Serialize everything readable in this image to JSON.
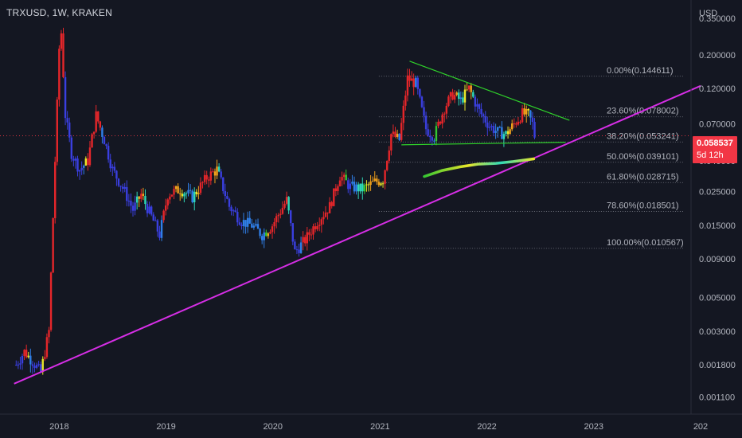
{
  "symbol": "TRXUSD, 1W, KRAKEN",
  "currency": "USD",
  "last_price": "0.058537",
  "countdown": "5d 12h",
  "colors": {
    "background": "#141722",
    "axis_text": "#b2b5be",
    "fib_text": "#b2b5be",
    "support_trendline": "#d62ee6",
    "triangle_lines": "#2fd22a",
    "price_badge": "#f23645"
  },
  "chart_data": {
    "type": "candlestick",
    "scale": "log",
    "ylim": [
      0.00085,
      0.45
    ],
    "xlim": [
      "2017-07-10",
      "2024-01-01"
    ],
    "y_ticks": [
      {
        "label": "0.350000",
        "value": 0.35
      },
      {
        "label": "0.200000",
        "value": 0.2
      },
      {
        "label": "0.120000",
        "value": 0.12
      },
      {
        "label": "0.070000",
        "value": 0.07
      },
      {
        "label": "0.040000",
        "value": 0.04
      },
      {
        "label": "0.025000",
        "value": 0.025
      },
      {
        "label": "0.015000",
        "value": 0.015
      },
      {
        "label": "0.009000",
        "value": 0.009
      },
      {
        "label": "0.005000",
        "value": 0.005
      },
      {
        "label": "0.003000",
        "value": 0.003
      },
      {
        "label": "0.001800",
        "value": 0.0018
      },
      {
        "label": "0.001100",
        "value": 0.0011
      }
    ],
    "x_ticks": [
      {
        "label": "2018",
        "date": "2018-01-01"
      },
      {
        "label": "2019",
        "date": "2019-01-01"
      },
      {
        "label": "2020",
        "date": "2020-01-01"
      },
      {
        "label": "2021",
        "date": "2021-01-01"
      },
      {
        "label": "2022",
        "date": "2022-01-01"
      },
      {
        "label": "2023",
        "date": "2023-01-01"
      },
      {
        "label": "202",
        "date": "2024-01-01"
      }
    ],
    "fib_levels": [
      {
        "label": "0.00%(0.144611)",
        "value": 0.144611
      },
      {
        "label": "23.60%(0.078002)",
        "value": 0.078002
      },
      {
        "label": "38.20%(0.053241)",
        "value": 0.053241
      },
      {
        "label": "50.00%(0.039101)",
        "value": 0.039101
      },
      {
        "label": "61.80%(0.028715)",
        "value": 0.028715
      },
      {
        "label": "78.60%(0.018501)",
        "value": 0.018501
      },
      {
        "label": "100.00%(0.010567)",
        "value": 0.010567
      }
    ],
    "fib_start_date": "2020-12-28",
    "current_price": 0.058537,
    "trendlines": [
      {
        "name": "support",
        "color": "#d62ee6",
        "from": [
          "2017-07-31",
          0.00135
        ],
        "to": [
          "2024-01-01",
          0.125
        ]
      },
      {
        "name": "triangle-top",
        "color": "#2fd22a",
        "from": [
          "2021-04-12",
          0.182
        ],
        "to": [
          "2022-10-10",
          0.074
        ]
      },
      {
        "name": "triangle-bottom",
        "color": "#2fd22a",
        "from": [
          "2021-03-15",
          0.051
        ],
        "to": [
          "2022-09-26",
          0.053
        ]
      }
    ],
    "moving_average": [
      [
        "2021-06-01",
        0.0315
      ],
      [
        "2021-08-01",
        0.0345
      ],
      [
        "2021-10-01",
        0.0365
      ],
      [
        "2021-12-01",
        0.038
      ],
      [
        "2022-02-01",
        0.0385
      ],
      [
        "2022-04-01",
        0.0395
      ],
      [
        "2022-06-10",
        0.0412
      ]
    ],
    "price_path": [
      [
        "2017-08-07",
        0.0018
      ],
      [
        "2017-09-04",
        0.0022
      ],
      [
        "2017-10-02",
        0.0019
      ],
      [
        "2017-10-30",
        0.0016
      ],
      [
        "2017-11-27",
        0.003
      ],
      [
        "2017-12-18",
        0.04
      ],
      [
        "2018-01-01",
        0.22
      ],
      [
        "2018-01-08",
        0.28
      ],
      [
        "2018-01-22",
        0.08
      ],
      [
        "2018-02-12",
        0.045
      ],
      [
        "2018-03-12",
        0.035
      ],
      [
        "2018-04-09",
        0.04
      ],
      [
        "2018-05-07",
        0.08
      ],
      [
        "2018-06-04",
        0.055
      ],
      [
        "2018-07-02",
        0.035
      ],
      [
        "2018-08-13",
        0.025
      ],
      [
        "2018-09-10",
        0.019
      ],
      [
        "2018-10-08",
        0.024
      ],
      [
        "2018-11-19",
        0.016
      ],
      [
        "2018-12-10",
        0.013
      ],
      [
        "2019-01-07",
        0.024
      ],
      [
        "2019-02-18",
        0.026
      ],
      [
        "2019-04-01",
        0.023
      ],
      [
        "2019-05-20",
        0.031
      ],
      [
        "2019-06-24",
        0.035
      ],
      [
        "2019-08-05",
        0.02
      ],
      [
        "2019-09-16",
        0.016
      ],
      [
        "2019-10-21",
        0.015
      ],
      [
        "2019-11-25",
        0.013
      ],
      [
        "2019-12-30",
        0.015
      ],
      [
        "2020-02-17",
        0.022
      ],
      [
        "2020-03-16",
        0.01
      ],
      [
        "2020-04-20",
        0.012
      ],
      [
        "2020-06-01",
        0.016
      ],
      [
        "2020-07-13",
        0.02
      ],
      [
        "2020-08-17",
        0.032
      ],
      [
        "2020-09-21",
        0.027
      ],
      [
        "2020-11-02",
        0.026
      ],
      [
        "2020-12-14",
        0.029
      ],
      [
        "2021-01-11",
        0.03
      ],
      [
        "2021-02-08",
        0.06
      ],
      [
        "2021-03-08",
        0.055
      ],
      [
        "2021-04-05",
        0.14
      ],
      [
        "2021-05-03",
        0.13
      ],
      [
        "2021-06-07",
        0.065
      ],
      [
        "2021-07-05",
        0.058
      ],
      [
        "2021-08-09",
        0.09
      ],
      [
        "2021-09-06",
        0.11
      ],
      [
        "2021-10-04",
        0.1
      ],
      [
        "2021-11-01",
        0.12
      ],
      [
        "2021-12-06",
        0.085
      ],
      [
        "2022-01-10",
        0.068
      ],
      [
        "2022-02-07",
        0.062
      ],
      [
        "2022-03-07",
        0.06
      ],
      [
        "2022-04-04",
        0.07
      ],
      [
        "2022-05-02",
        0.082
      ],
      [
        "2022-05-23",
        0.08
      ],
      [
        "2022-06-06",
        0.07
      ],
      [
        "2022-06-13",
        0.0585
      ]
    ]
  }
}
